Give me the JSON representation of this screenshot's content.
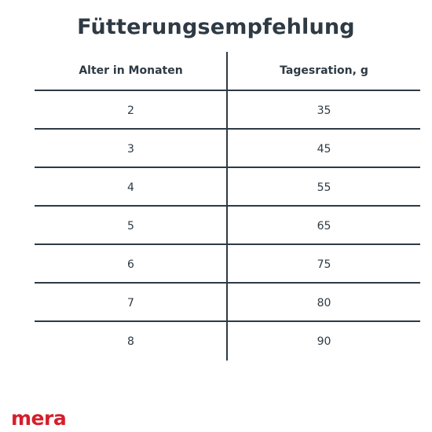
{
  "title": "Fütterungsempfehlung",
  "table": {
    "headers": {
      "age": "Alter in Monaten",
      "ration": "Tagesration, g"
    },
    "rows": [
      {
        "age": "2",
        "ration": "35"
      },
      {
        "age": "3",
        "ration": "45"
      },
      {
        "age": "4",
        "ration": "55"
      },
      {
        "age": "5",
        "ration": "65"
      },
      {
        "age": "6",
        "ration": "75"
      },
      {
        "age": "7",
        "ration": "80"
      },
      {
        "age": "8",
        "ration": "90"
      }
    ]
  },
  "brand": {
    "name": "mera",
    "color": "#d41f2a"
  },
  "colors": {
    "text": "#2e3a44",
    "lines": "#2e3a44",
    "background": "#ffffff"
  }
}
